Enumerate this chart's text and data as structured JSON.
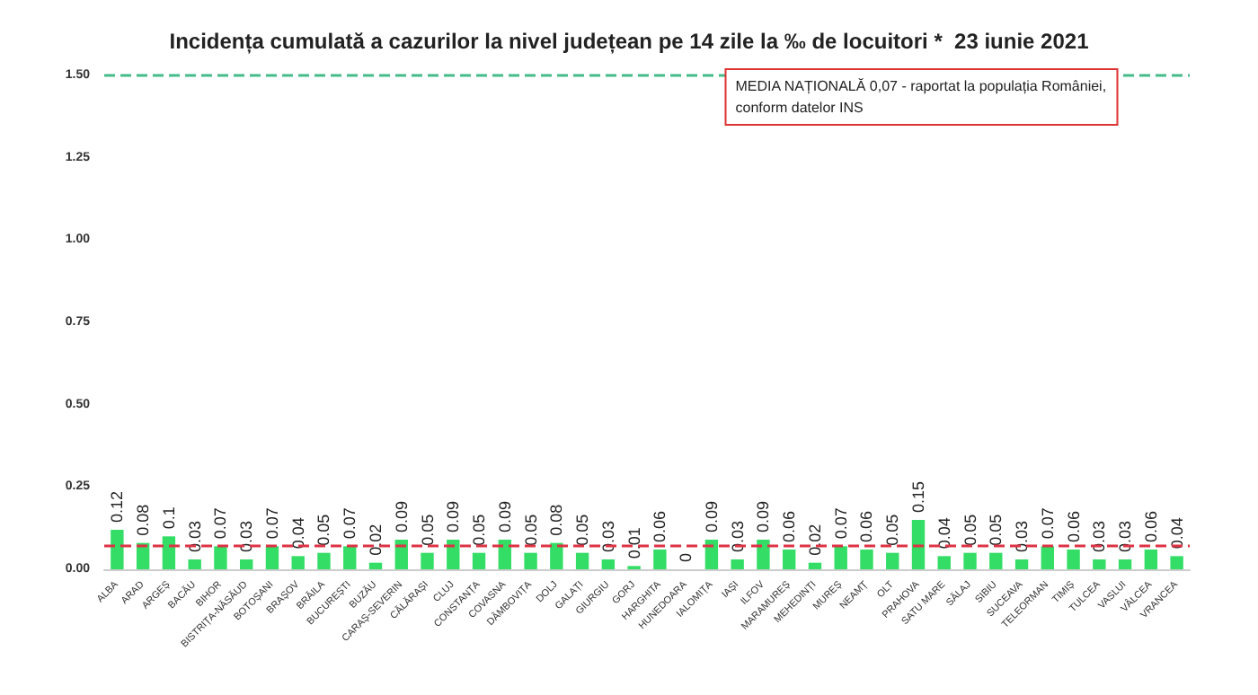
{
  "chart_data": {
    "type": "bar",
    "title": "Incidența cumulată a cazurilor la nivel județean pe 14 zile la ‰ de locuitori *  23 iunie 2021",
    "categories": [
      "ALBA",
      "ARAD",
      "ARGEȘ",
      "BACĂU",
      "BIHOR",
      "BISTRIȚA-NĂSĂUD",
      "BOTOȘANI",
      "BRAȘOV",
      "BRĂILA",
      "BUCUREȘTI",
      "BUZĂU",
      "CARAȘ-SEVERIN",
      "CĂLĂRAȘI",
      "CLUJ",
      "CONSTANȚA",
      "COVASNA",
      "DÂMBOVIȚA",
      "DOLJ",
      "GALAȚI",
      "GIURGIU",
      "GORJ",
      "HARGHITA",
      "HUNEDOARA",
      "IALOMIȚA",
      "IAȘI",
      "ILFOV",
      "MARAMUREȘ",
      "MEHEDINȚI",
      "MUREȘ",
      "NEAMȚ",
      "OLT",
      "PRAHOVA",
      "SATU MARE",
      "SĂLAJ",
      "SIBIU",
      "SUCEAVA",
      "TELEORMAN",
      "TIMIȘ",
      "TULCEA",
      "VASLUI",
      "VÂLCEA",
      "VRANCEA"
    ],
    "values": [
      0.12,
      0.08,
      0.1,
      0.03,
      0.07,
      0.03,
      0.07,
      0.04,
      0.05,
      0.07,
      0.02,
      0.09,
      0.05,
      0.09,
      0.05,
      0.09,
      0.05,
      0.08,
      0.05,
      0.03,
      0.01,
      0.06,
      0,
      0.09,
      0.03,
      0.09,
      0.06,
      0.02,
      0.07,
      0.06,
      0.05,
      0.15,
      0.04,
      0.05,
      0.05,
      0.03,
      0.07,
      0.06,
      0.03,
      0.03,
      0.06,
      0.04
    ],
    "color": "#33dd66",
    "data_labels": true,
    "ylim": [
      0,
      1.5
    ],
    "yticks": [
      {
        "value": 0,
        "label": "0.00"
      },
      {
        "value": 0.25,
        "label": "0.25"
      },
      {
        "value": 0.5,
        "label": "0.50"
      },
      {
        "value": 0.75,
        "label": "0.75"
      },
      {
        "value": 1,
        "label": "1.00"
      },
      {
        "value": 1.25,
        "label": "1.25"
      },
      {
        "value": 1.5,
        "label": "1.50"
      }
    ],
    "ref_lines": [
      {
        "axis": "y",
        "value": 1.5,
        "color": "#44bb88",
        "line_style": "dashed"
      },
      {
        "axis": "y",
        "value": 0.07,
        "color": "#dd3344",
        "line_style": "dashed"
      }
    ],
    "annotations": [
      "MEDIA NAȚIONALĂ 0,07 - raportat la populația României,\nconform datelor INS"
    ],
    "grid": false
  }
}
